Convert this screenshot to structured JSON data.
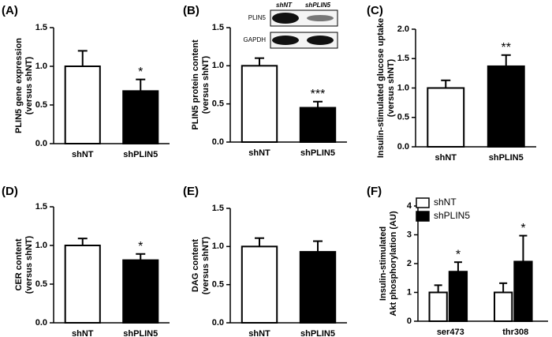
{
  "chart_data": [
    {
      "type": "bar",
      "panel": "(A)",
      "ylabel": [
        "PLIN5 gene expression",
        "(versus shNT)"
      ],
      "categories": [
        "shNT",
        "shPLIN5"
      ],
      "values": [
        1.0,
        0.68
      ],
      "errors": [
        0.2,
        0.15
      ],
      "colors": [
        "#ffffff",
        "#000000"
      ],
      "significance": [
        null,
        "*"
      ],
      "ylim": [
        0,
        1.5
      ],
      "yticks": [
        {
          "value": 0,
          "label": "0.0"
        },
        {
          "value": 0.5,
          "label": "0.5"
        },
        {
          "value": 1,
          "label": "1.0"
        },
        {
          "value": 1.5,
          "label": "1.5"
        }
      ]
    },
    {
      "type": "bar",
      "panel": "(B)",
      "ylabel": [
        "PLIN5 protein content",
        "(versus shNT)"
      ],
      "categories": [
        "shNT",
        "shPLIN5"
      ],
      "values": [
        1.0,
        0.45
      ],
      "errors": [
        0.1,
        0.08
      ],
      "colors": [
        "#ffffff",
        "#000000"
      ],
      "significance": [
        null,
        "***"
      ],
      "ylim": [
        0,
        1.5
      ],
      "yticks": [
        {
          "value": 0,
          "label": "0.0"
        },
        {
          "value": 0.5,
          "label": "0.5"
        },
        {
          "value": 1,
          "label": "1.0"
        },
        {
          "value": 1.5,
          "label": "1.5"
        }
      ],
      "blot": {
        "columns": [
          "shNT",
          "shPLIN5"
        ],
        "rows": [
          "PLIN5",
          "GAPDH"
        ]
      }
    },
    {
      "type": "bar",
      "panel": "(C)",
      "ylabel": [
        "Insulin-stimulated glucose uptake",
        "(versus shNT)"
      ],
      "categories": [
        "shNT",
        "shPLIN5"
      ],
      "values": [
        1.0,
        1.37
      ],
      "errors": [
        0.13,
        0.19
      ],
      "colors": [
        "#ffffff",
        "#000000"
      ],
      "significance": [
        null,
        "**"
      ],
      "ylim": [
        0,
        2
      ],
      "yticks": [
        {
          "value": 0,
          "label": "0.0"
        },
        {
          "value": 0.5,
          "label": "0.5"
        },
        {
          "value": 1,
          "label": "1.0"
        },
        {
          "value": 1.5,
          "label": "1.5"
        },
        {
          "value": 2,
          "label": "2.0"
        }
      ]
    },
    {
      "type": "bar",
      "panel": "(D)",
      "ylabel": [
        "CER content",
        "(versus shNT)"
      ],
      "categories": [
        "shNT",
        "shPLIN5"
      ],
      "values": [
        1.0,
        0.81
      ],
      "errors": [
        0.09,
        0.08
      ],
      "colors": [
        "#ffffff",
        "#000000"
      ],
      "significance": [
        null,
        "*"
      ],
      "ylim": [
        0,
        1.5
      ],
      "yticks": [
        {
          "value": 0,
          "label": "0.0"
        },
        {
          "value": 0.5,
          "label": "0.5"
        },
        {
          "value": 1,
          "label": "1.0"
        },
        {
          "value": 1.5,
          "label": "1.5"
        }
      ]
    },
    {
      "type": "bar",
      "panel": "(E)",
      "ylabel": [
        "DAG content",
        "(versus shNT)"
      ],
      "categories": [
        "shNT",
        "shPLIN5"
      ],
      "values": [
        1.0,
        0.93
      ],
      "errors": [
        0.11,
        0.14
      ],
      "colors": [
        "#ffffff",
        "#000000"
      ],
      "ylim": [
        0,
        1.5
      ],
      "yticks": [
        {
          "value": 0,
          "label": "0.0"
        },
        {
          "value": 0.5,
          "label": "0.5"
        },
        {
          "value": 1,
          "label": "1.0"
        },
        {
          "value": 1.5,
          "label": "1.5"
        }
      ]
    },
    {
      "type": "grouped-bar",
      "panel": "(F)",
      "ylabel": [
        "Insulin-stimulated",
        "Akt phosphorylation (AU)"
      ],
      "categories": [
        "ser473",
        "thr308"
      ],
      "series": [
        {
          "name": "shNT",
          "color": "#ffffff",
          "values": [
            1.0,
            1.0
          ],
          "errors": [
            0.25,
            0.32
          ]
        },
        {
          "name": "shPLIN5",
          "color": "#000000",
          "values": [
            1.72,
            2.07
          ],
          "errors": [
            0.33,
            0.9
          ],
          "significance": [
            "*",
            "*"
          ]
        }
      ],
      "ylim": [
        0,
        4
      ],
      "yticks": [
        0,
        1,
        2,
        3,
        4
      ],
      "legend": "top-left"
    }
  ]
}
